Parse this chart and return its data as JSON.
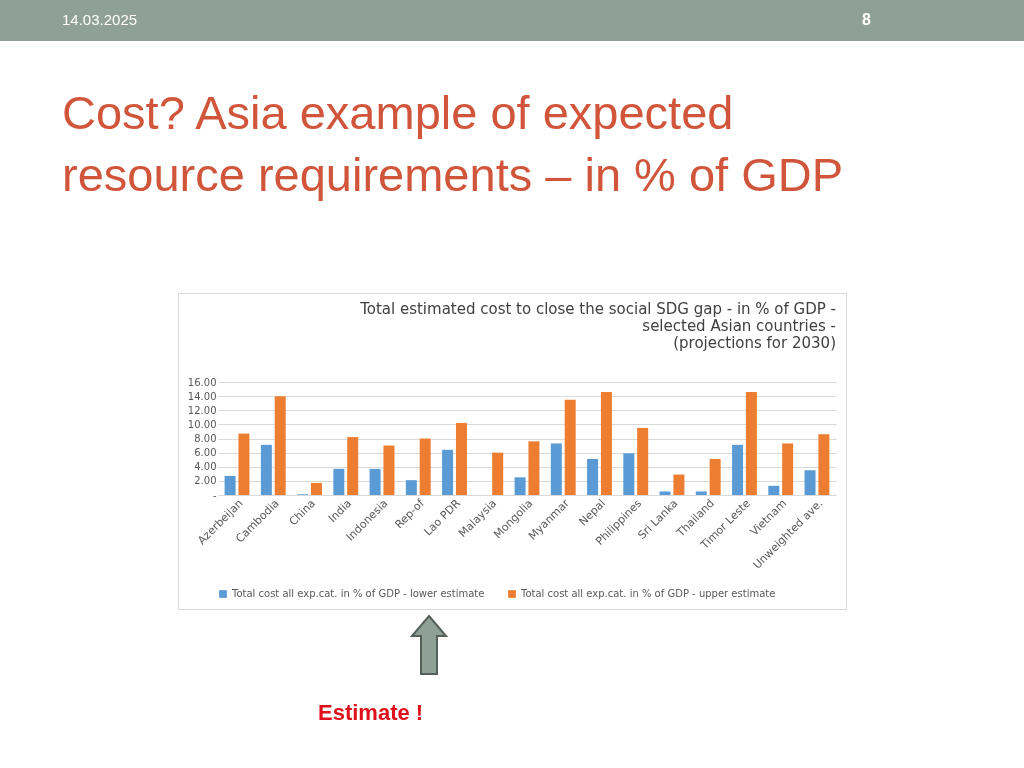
{
  "chart_data": {
    "type": "bar",
    "title": "Cost?  Asia example of expected resource requirements – in % of GDP",
    "subtitle": "Total estimated cost to close the social SDG gap - in % of GDP -\nselected Asian countries -\n(projections for 2030)",
    "annotations": [
      "14.03.2025",
      "8",
      "Estimate  !"
    ],
    "categories": [
      "Azerbeijan",
      "Cambodia",
      "China",
      "India",
      "Indonesia",
      "Rep-of",
      "Lao PDR",
      "Malaysia",
      "Mongolia",
      "Myanmar",
      "Nepal",
      "Philippines",
      "Sri Lanka",
      "Thailand",
      "Timor Leste",
      "Vietnam",
      "Unweighted ave."
    ],
    "series": [
      {
        "name": "Total cost all exp.cat. in % of GDP - lower estimate",
        "color": "#5b9bd5",
        "values": [
          2.7,
          7.1,
          0.1,
          3.7,
          3.7,
          2.1,
          6.4,
          null,
          2.5,
          7.3,
          5.1,
          5.9,
          0.5,
          0.5,
          7.1,
          1.3,
          3.5
        ]
      },
      {
        "name": "Total cost all exp.cat. in % of GDP  - upper estimate",
        "color": "#ed7d31",
        "values": [
          8.7,
          14.0,
          1.7,
          8.2,
          7.0,
          8.0,
          10.2,
          6.0,
          7.6,
          13.5,
          14.6,
          9.5,
          2.9,
          5.1,
          14.6,
          7.3,
          8.6
        ]
      }
    ],
    "ylim": [
      0,
      16
    ],
    "yticks": [
      {
        "value": 0,
        "label": "-"
      },
      {
        "value": 2,
        "label": "2.00"
      },
      {
        "value": 4,
        "label": "4.00"
      },
      {
        "value": 6,
        "label": "6.00"
      },
      {
        "value": 8,
        "label": "8.00"
      },
      {
        "value": 10,
        "label": "10.00"
      },
      {
        "value": 12,
        "label": "12.00"
      },
      {
        "value": 14,
        "label": "14.00"
      },
      {
        "value": 16,
        "label": "16.00"
      }
    ],
    "grid": "y",
    "legend": "bottom"
  }
}
